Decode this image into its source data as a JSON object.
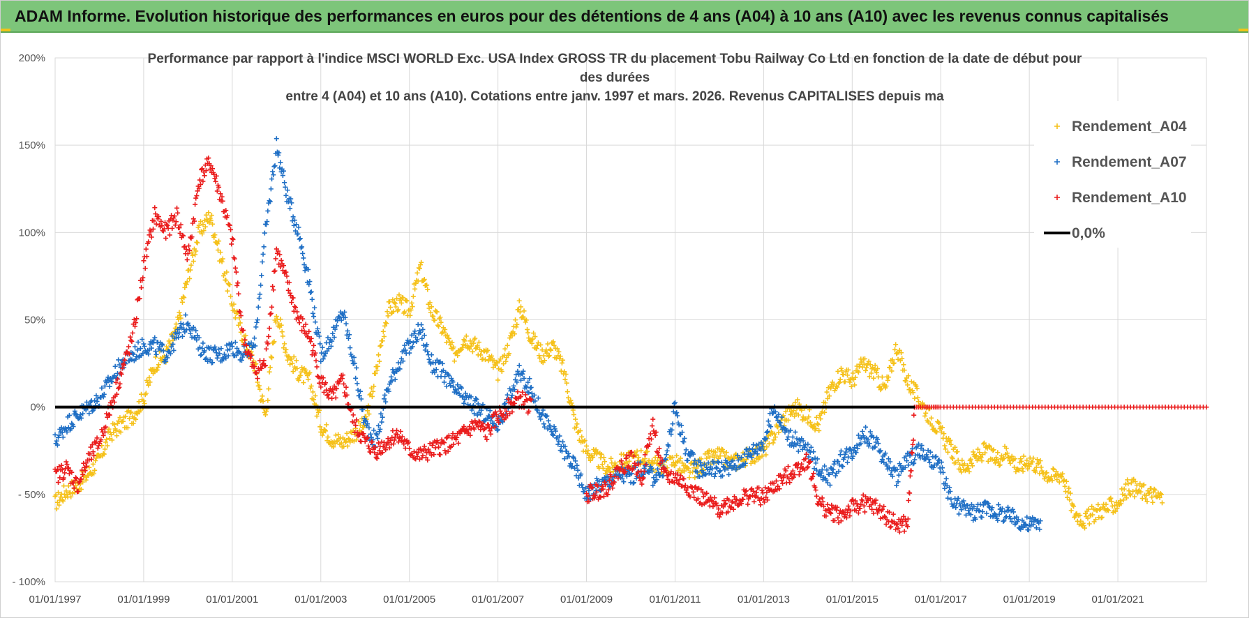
{
  "banner": {
    "title": "ADAM Informe. Evolution historique des performances en euros pour des détentions de 4 ans (A04) à 10 ans (A10) avec les revenus connus capitalisés"
  },
  "chart_data": {
    "type": "scatter",
    "title_lines": [
      "Performance par rapport à l'indice MSCI WORLD Exc. USA Index GROSS TR  du placement Tobu Railway Co Ltd en fonction de la date de début pour",
      "des durées",
      "entre 4 (A04) et 10 ans (A10).  Cotations entre janv. 1997 et mars. 2026. Revenus CAPITALISES depuis ma"
    ],
    "xlabel": "",
    "ylabel": "",
    "xlim": [
      "1997-01-01",
      "2023-01-01"
    ],
    "ylim": [
      -100,
      200
    ],
    "x_ticks": [
      "01/01/1997",
      "01/01/1999",
      "01/01/2001",
      "01/01/2003",
      "01/01/2005",
      "01/01/2007",
      "01/01/2009",
      "01/01/2011",
      "01/01/2013",
      "01/01/2015",
      "01/01/2017",
      "01/01/2019",
      "01/01/2021"
    ],
    "y_ticks": [
      "200%",
      "150%",
      "100%",
      "50%",
      "0%",
      "- 50%",
      "- 100%"
    ],
    "grid": true,
    "legend_position": "top-right",
    "series": [
      {
        "name": "Rendement_A04",
        "color": "#f5c11a",
        "marker": "plus",
        "points": [
          [
            "1997-01",
            -55
          ],
          [
            "1997-04",
            -48
          ],
          [
            "1997-07",
            -45
          ],
          [
            "1997-10",
            -38
          ],
          [
            "1998-01",
            -30
          ],
          [
            "1998-04",
            -15
          ],
          [
            "1998-07",
            -10
          ],
          [
            "1998-10",
            -5
          ],
          [
            "1999-01",
            5
          ],
          [
            "1999-04",
            25
          ],
          [
            "1999-07",
            30
          ],
          [
            "1999-10",
            45
          ],
          [
            "2000-01",
            75
          ],
          [
            "2000-04",
            100
          ],
          [
            "2000-07",
            110
          ],
          [
            "2000-10",
            85
          ],
          [
            "2001-01",
            60
          ],
          [
            "2001-04",
            40
          ],
          [
            "2001-07",
            25
          ],
          [
            "2001-10",
            -5
          ],
          [
            "2002-01",
            55
          ],
          [
            "2002-04",
            30
          ],
          [
            "2002-07",
            20
          ],
          [
            "2002-10",
            15
          ],
          [
            "2003-01",
            -10
          ],
          [
            "2003-04",
            -18
          ],
          [
            "2003-07",
            -20
          ],
          [
            "2003-10",
            -15
          ],
          [
            "2004-01",
            -10
          ],
          [
            "2004-04",
            20
          ],
          [
            "2004-07",
            55
          ],
          [
            "2004-10",
            60
          ],
          [
            "2005-01",
            55
          ],
          [
            "2005-04",
            80
          ],
          [
            "2005-07",
            55
          ],
          [
            "2005-10",
            45
          ],
          [
            "2006-01",
            30
          ],
          [
            "2006-04",
            40
          ],
          [
            "2006-07",
            35
          ],
          [
            "2006-10",
            30
          ],
          [
            "2007-01",
            20
          ],
          [
            "2007-04",
            35
          ],
          [
            "2007-07",
            58
          ],
          [
            "2007-10",
            40
          ],
          [
            "2008-01",
            30
          ],
          [
            "2008-04",
            35
          ],
          [
            "2008-07",
            20
          ],
          [
            "2008-10",
            -10
          ],
          [
            "2009-01",
            -25
          ],
          [
            "2009-04",
            -30
          ],
          [
            "2009-07",
            -35
          ],
          [
            "2009-10",
            -32
          ],
          [
            "2010-01",
            -30
          ],
          [
            "2010-04",
            -28
          ],
          [
            "2010-07",
            -32
          ],
          [
            "2010-10",
            -35
          ],
          [
            "2011-01",
            -30
          ],
          [
            "2011-04",
            -38
          ],
          [
            "2011-07",
            -35
          ],
          [
            "2011-10",
            -30
          ],
          [
            "2012-01",
            -28
          ],
          [
            "2012-04",
            -32
          ],
          [
            "2012-07",
            -30
          ],
          [
            "2012-10",
            -27
          ],
          [
            "2013-01",
            -25
          ],
          [
            "2013-04",
            -15
          ],
          [
            "2013-07",
            -5
          ],
          [
            "2013-10",
            0
          ],
          [
            "2014-01",
            -5
          ],
          [
            "2014-04",
            -10
          ],
          [
            "2014-07",
            10
          ],
          [
            "2014-10",
            20
          ],
          [
            "2015-01",
            15
          ],
          [
            "2015-04",
            25
          ],
          [
            "2015-07",
            20
          ],
          [
            "2015-10",
            10
          ],
          [
            "2016-01",
            35
          ],
          [
            "2016-04",
            15
          ],
          [
            "2016-07",
            5
          ],
          [
            "2016-10",
            -5
          ],
          [
            "2017-01",
            -15
          ],
          [
            "2017-04",
            -25
          ],
          [
            "2017-07",
            -35
          ],
          [
            "2017-10",
            -30
          ],
          [
            "2018-01",
            -25
          ],
          [
            "2018-04",
            -30
          ],
          [
            "2018-07",
            -25
          ],
          [
            "2018-10",
            -35
          ],
          [
            "2019-01",
            -30
          ],
          [
            "2019-04",
            -35
          ],
          [
            "2019-07",
            -40
          ],
          [
            "2019-10",
            -38
          ],
          [
            "2020-01",
            -60
          ],
          [
            "2020-04",
            -65
          ],
          [
            "2020-07",
            -60
          ],
          [
            "2020-10",
            -58
          ],
          [
            "2021-01",
            -55
          ],
          [
            "2021-04",
            -45
          ],
          [
            "2021-07",
            -48
          ],
          [
            "2021-10",
            -50
          ],
          [
            "2022-01",
            -52
          ]
        ]
      },
      {
        "name": "Rendement_A07",
        "color": "#1f6fc5",
        "marker": "plus",
        "points": [
          [
            "1997-01",
            -20
          ],
          [
            "1997-04",
            -10
          ],
          [
            "1997-07",
            -5
          ],
          [
            "1997-10",
            0
          ],
          [
            "1998-01",
            5
          ],
          [
            "1998-04",
            15
          ],
          [
            "1998-07",
            25
          ],
          [
            "1998-10",
            30
          ],
          [
            "1999-01",
            35
          ],
          [
            "1999-04",
            35
          ],
          [
            "1999-07",
            30
          ],
          [
            "1999-10",
            40
          ],
          [
            "2000-01",
            50
          ],
          [
            "2000-04",
            35
          ],
          [
            "2000-07",
            30
          ],
          [
            "2000-10",
            30
          ],
          [
            "2001-01",
            35
          ],
          [
            "2001-04",
            30
          ],
          [
            "2001-07",
            35
          ],
          [
            "2001-10",
            100
          ],
          [
            "2002-01",
            150
          ],
          [
            "2002-04",
            120
          ],
          [
            "2002-07",
            100
          ],
          [
            "2002-10",
            70
          ],
          [
            "2003-01",
            30
          ],
          [
            "2003-04",
            40
          ],
          [
            "2003-07",
            55
          ],
          [
            "2003-10",
            25
          ],
          [
            "2004-01",
            -10
          ],
          [
            "2004-04",
            -20
          ],
          [
            "2004-07",
            10
          ],
          [
            "2004-10",
            25
          ],
          [
            "2005-01",
            35
          ],
          [
            "2005-04",
            45
          ],
          [
            "2005-07",
            25
          ],
          [
            "2005-10",
            20
          ],
          [
            "2006-01",
            10
          ],
          [
            "2006-04",
            5
          ],
          [
            "2006-07",
            0
          ],
          [
            "2006-10",
            -5
          ],
          [
            "2007-01",
            -10
          ],
          [
            "2007-04",
            5
          ],
          [
            "2007-07",
            20
          ],
          [
            "2007-10",
            10
          ],
          [
            "2008-01",
            -5
          ],
          [
            "2008-04",
            -15
          ],
          [
            "2008-07",
            -25
          ],
          [
            "2008-10",
            -35
          ],
          [
            "2009-01",
            -50
          ],
          [
            "2009-04",
            -45
          ],
          [
            "2009-07",
            -42
          ],
          [
            "2009-10",
            -38
          ],
          [
            "2010-01",
            -40
          ],
          [
            "2010-04",
            -35
          ],
          [
            "2010-07",
            -40
          ],
          [
            "2010-10",
            -35
          ],
          [
            "2011-01",
            0
          ],
          [
            "2011-04",
            -25
          ],
          [
            "2011-07",
            -35
          ],
          [
            "2011-10",
            -35
          ],
          [
            "2012-01",
            -35
          ],
          [
            "2012-04",
            -35
          ],
          [
            "2012-07",
            -30
          ],
          [
            "2012-10",
            -25
          ],
          [
            "2013-01",
            -20
          ],
          [
            "2013-04",
            0
          ],
          [
            "2013-07",
            -15
          ],
          [
            "2013-10",
            -20
          ],
          [
            "2014-01",
            -25
          ],
          [
            "2014-04",
            -35
          ],
          [
            "2014-07",
            -40
          ],
          [
            "2014-10",
            -30
          ],
          [
            "2015-01",
            -25
          ],
          [
            "2015-04",
            -15
          ],
          [
            "2015-07",
            -20
          ],
          [
            "2015-10",
            -30
          ],
          [
            "2016-01",
            -40
          ],
          [
            "2016-04",
            -30
          ],
          [
            "2016-07",
            -25
          ],
          [
            "2016-10",
            -30
          ],
          [
            "2017-01",
            -35
          ],
          [
            "2017-04",
            -55
          ],
          [
            "2017-07",
            -58
          ],
          [
            "2017-10",
            -60
          ],
          [
            "2018-01",
            -58
          ],
          [
            "2018-04",
            -60
          ],
          [
            "2018-07",
            -62
          ],
          [
            "2018-10",
            -65
          ],
          [
            "2019-01",
            -68
          ],
          [
            "2019-04",
            -65
          ]
        ]
      },
      {
        "name": "Rendement_A10",
        "color": "#ea1c1c",
        "marker": "plus",
        "points": [
          [
            "1997-01",
            -40
          ],
          [
            "1997-04",
            -35
          ],
          [
            "1997-07",
            -45
          ],
          [
            "1997-10",
            -30
          ],
          [
            "1998-01",
            -20
          ],
          [
            "1998-04",
            0
          ],
          [
            "1998-07",
            20
          ],
          [
            "1998-10",
            40
          ],
          [
            "1999-01",
            80
          ],
          [
            "1999-04",
            110
          ],
          [
            "1999-07",
            100
          ],
          [
            "1999-10",
            110
          ],
          [
            "2000-01",
            85
          ],
          [
            "2000-04",
            130
          ],
          [
            "2000-07",
            140
          ],
          [
            "2000-10",
            120
          ],
          [
            "2001-01",
            95
          ],
          [
            "2001-04",
            40
          ],
          [
            "2001-07",
            20
          ],
          [
            "2001-10",
            25
          ],
          [
            "2002-01",
            90
          ],
          [
            "2002-04",
            70
          ],
          [
            "2002-07",
            50
          ],
          [
            "2002-10",
            40
          ],
          [
            "2003-01",
            15
          ],
          [
            "2003-04",
            5
          ],
          [
            "2003-07",
            15
          ],
          [
            "2003-10",
            -10
          ],
          [
            "2004-01",
            -20
          ],
          [
            "2004-04",
            -25
          ],
          [
            "2004-07",
            -20
          ],
          [
            "2004-10",
            -15
          ],
          [
            "2005-01",
            -25
          ],
          [
            "2005-04",
            -28
          ],
          [
            "2005-07",
            -25
          ],
          [
            "2005-10",
            -22
          ],
          [
            "2006-01",
            -20
          ],
          [
            "2006-04",
            -15
          ],
          [
            "2006-07",
            -10
          ],
          [
            "2006-10",
            -15
          ],
          [
            "2007-01",
            -5
          ],
          [
            "2007-04",
            0
          ],
          [
            "2007-07",
            5
          ],
          [
            "2007-10",
            0
          ],
          [
            "2009-01",
            -50
          ],
          [
            "2009-04",
            -48
          ],
          [
            "2009-07",
            -45
          ],
          [
            "2009-10",
            -35
          ],
          [
            "2010-01",
            -30
          ],
          [
            "2010-04",
            -40
          ],
          [
            "2010-07",
            -10
          ],
          [
            "2010-10",
            -40
          ],
          [
            "2011-01",
            -40
          ],
          [
            "2011-04",
            -45
          ],
          [
            "2011-07",
            -50
          ],
          [
            "2011-10",
            -55
          ],
          [
            "2012-01",
            -58
          ],
          [
            "2012-04",
            -55
          ],
          [
            "2012-07",
            -52
          ],
          [
            "2012-10",
            -50
          ],
          [
            "2013-01",
            -52
          ],
          [
            "2013-04",
            -45
          ],
          [
            "2013-07",
            -40
          ],
          [
            "2013-10",
            -35
          ],
          [
            "2014-01",
            -30
          ],
          [
            "2014-04",
            -55
          ],
          [
            "2014-07",
            -60
          ],
          [
            "2014-10",
            -62
          ],
          [
            "2015-01",
            -58
          ],
          [
            "2015-04",
            -55
          ],
          [
            "2015-07",
            -57
          ],
          [
            "2015-10",
            -62
          ],
          [
            "2016-01",
            -68
          ],
          [
            "2016-04",
            -67
          ],
          [
            "2016-06",
            0
          ],
          [
            "2017-01",
            0
          ],
          [
            "2018-01",
            0
          ],
          [
            "2019-01",
            0
          ],
          [
            "2020-01",
            0
          ],
          [
            "2021-01",
            0
          ],
          [
            "2022-01",
            0
          ],
          [
            "2023-01",
            0
          ]
        ]
      },
      {
        "name": "0,0%",
        "color": "#000000",
        "marker": "line",
        "points": [
          [
            "1997-01",
            0
          ],
          [
            "2016-06",
            0
          ]
        ]
      }
    ]
  }
}
